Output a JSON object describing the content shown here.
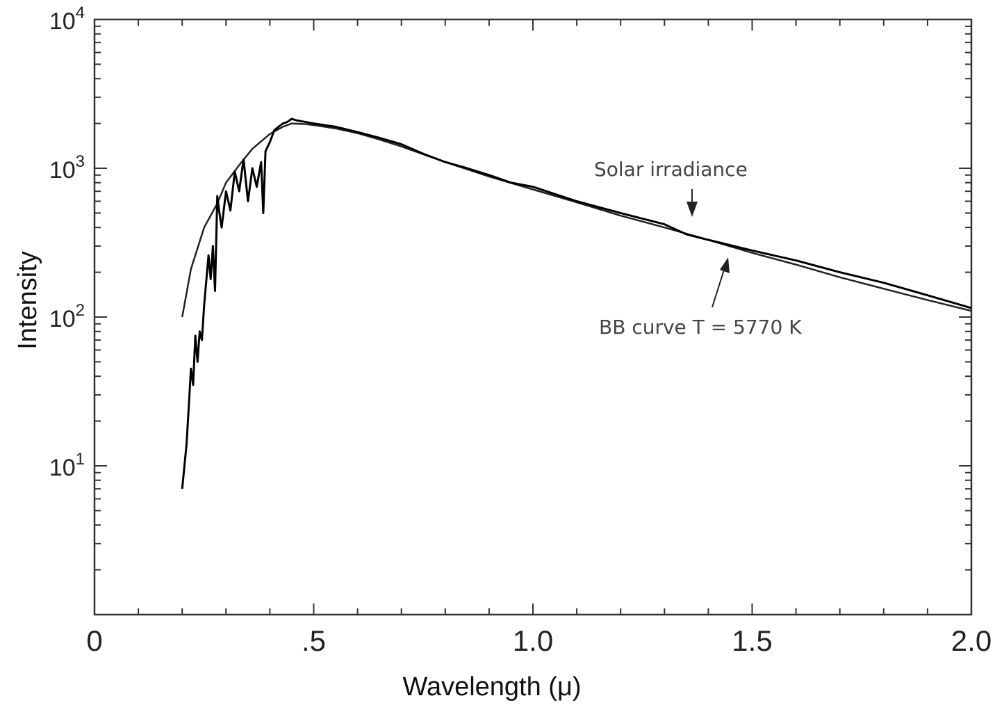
{
  "chart_data": {
    "type": "line",
    "title": "",
    "xlabel": "Wavelength (μ)",
    "ylabel": "Intensity",
    "xlim": [
      0,
      2.0
    ],
    "ylim": [
      1,
      10000
    ],
    "y_scale": "log",
    "x_ticks": [
      {
        "value": 0,
        "label": "0"
      },
      {
        "value": 0.5,
        "label": ".5"
      },
      {
        "value": 1.0,
        "label": "1.0"
      },
      {
        "value": 1.5,
        "label": "1.5"
      },
      {
        "value": 2.0,
        "label": "2.0"
      }
    ],
    "y_ticks": [
      {
        "value": 10,
        "base": "10",
        "exp": "1"
      },
      {
        "value": 100,
        "base": "10",
        "exp": "2"
      },
      {
        "value": 1000,
        "base": "10",
        "exp": "3"
      },
      {
        "value": 10000,
        "base": "10",
        "exp": "4"
      }
    ],
    "grid": false,
    "series": [
      {
        "name": "BB curve T = 5770 K",
        "color": "#222222",
        "x": [
          0.2,
          0.22,
          0.25,
          0.28,
          0.3,
          0.33,
          0.36,
          0.4,
          0.43,
          0.45,
          0.48,
          0.5,
          0.55,
          0.6,
          0.65,
          0.7,
          0.8,
          0.9,
          1.0,
          1.1,
          1.2,
          1.3,
          1.4,
          1.5,
          1.6,
          1.7,
          1.8,
          1.9,
          2.0
        ],
        "values": [
          100,
          210,
          400,
          580,
          800,
          1050,
          1350,
          1700,
          1900,
          2000,
          1980,
          1950,
          1850,
          1720,
          1560,
          1400,
          1100,
          880,
          720,
          590,
          480,
          400,
          330,
          270,
          225,
          185,
          155,
          130,
          110
        ]
      },
      {
        "name": "Solar irradiance",
        "color": "#000000",
        "x": [
          0.2,
          0.21,
          0.215,
          0.22,
          0.225,
          0.23,
          0.235,
          0.24,
          0.245,
          0.25,
          0.26,
          0.265,
          0.27,
          0.275,
          0.28,
          0.285,
          0.29,
          0.3,
          0.31,
          0.32,
          0.33,
          0.34,
          0.35,
          0.36,
          0.37,
          0.38,
          0.385,
          0.39,
          0.4,
          0.41,
          0.42,
          0.43,
          0.44,
          0.45,
          0.46,
          0.48,
          0.5,
          0.55,
          0.6,
          0.65,
          0.7,
          0.75,
          0.8,
          0.85,
          0.9,
          0.95,
          1.0,
          1.1,
          1.2,
          1.3,
          1.35,
          1.4,
          1.5,
          1.6,
          1.7,
          1.8,
          1.9,
          2.0
        ],
        "values": [
          7,
          14,
          25,
          45,
          35,
          75,
          50,
          80,
          70,
          120,
          260,
          180,
          300,
          150,
          650,
          500,
          400,
          700,
          520,
          950,
          700,
          1150,
          600,
          1000,
          750,
          1100,
          500,
          1300,
          1500,
          1800,
          1900,
          2000,
          2050,
          2150,
          2100,
          2050,
          2000,
          1900,
          1750,
          1600,
          1450,
          1250,
          1100,
          1000,
          900,
          800,
          750,
          600,
          500,
          420,
          360,
          330,
          280,
          240,
          200,
          170,
          140,
          115
        ]
      }
    ],
    "annotations": [
      {
        "text": "Solar irradiance",
        "at": [
          1.36,
          400
        ]
      },
      {
        "text": "BB curve T = 5770 K",
        "at": [
          1.43,
          290
        ]
      }
    ]
  }
}
